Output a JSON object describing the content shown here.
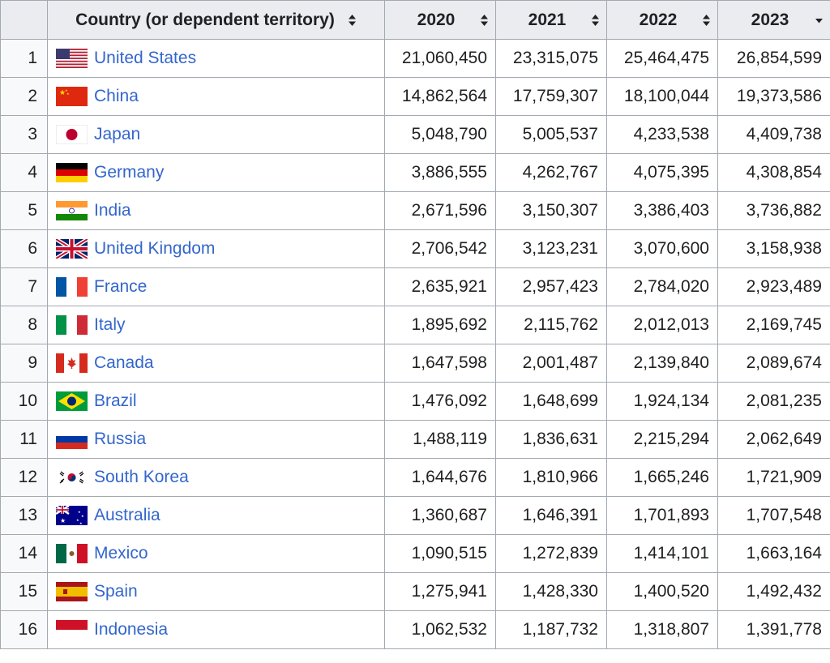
{
  "table": {
    "headers": {
      "rank": "",
      "country": "Country (or dependent territory)",
      "y2020": "2020",
      "y2021": "2021",
      "y2022": "2022",
      "y2023": "2023"
    },
    "sort_state": {
      "country": "unsorted",
      "y2020": "unsorted",
      "y2021": "unsorted",
      "y2022": "unsorted",
      "y2023": "descending"
    },
    "rows": [
      {
        "rank": "1",
        "flag": "flag-us-icon",
        "country": "United States",
        "v2020": "21,060,450",
        "v2021": "23,315,075",
        "v2022": "25,464,475",
        "v2023": "26,854,599"
      },
      {
        "rank": "2",
        "flag": "flag-cn-icon",
        "country": "China",
        "v2020": "14,862,564",
        "v2021": "17,759,307",
        "v2022": "18,100,044",
        "v2023": "19,373,586"
      },
      {
        "rank": "3",
        "flag": "flag-jp-icon",
        "country": "Japan",
        "v2020": "5,048,790",
        "v2021": "5,005,537",
        "v2022": "4,233,538",
        "v2023": "4,409,738"
      },
      {
        "rank": "4",
        "flag": "flag-de-icon",
        "country": "Germany",
        "v2020": "3,886,555",
        "v2021": "4,262,767",
        "v2022": "4,075,395",
        "v2023": "4,308,854"
      },
      {
        "rank": "5",
        "flag": "flag-in-icon",
        "country": "India",
        "v2020": "2,671,596",
        "v2021": "3,150,307",
        "v2022": "3,386,403",
        "v2023": "3,736,882"
      },
      {
        "rank": "6",
        "flag": "flag-gb-icon",
        "country": "United Kingdom",
        "v2020": "2,706,542",
        "v2021": "3,123,231",
        "v2022": "3,070,600",
        "v2023": "3,158,938"
      },
      {
        "rank": "7",
        "flag": "flag-fr-icon",
        "country": "France",
        "v2020": "2,635,921",
        "v2021": "2,957,423",
        "v2022": "2,784,020",
        "v2023": "2,923,489"
      },
      {
        "rank": "8",
        "flag": "flag-it-icon",
        "country": "Italy",
        "v2020": "1,895,692",
        "v2021": "2,115,762",
        "v2022": "2,012,013",
        "v2023": "2,169,745"
      },
      {
        "rank": "9",
        "flag": "flag-ca-icon",
        "country": "Canada",
        "v2020": "1,647,598",
        "v2021": "2,001,487",
        "v2022": "2,139,840",
        "v2023": "2,089,674"
      },
      {
        "rank": "10",
        "flag": "flag-br-icon",
        "country": "Brazil",
        "v2020": "1,476,092",
        "v2021": "1,648,699",
        "v2022": "1,924,134",
        "v2023": "2,081,235"
      },
      {
        "rank": "11",
        "flag": "flag-ru-icon",
        "country": "Russia",
        "v2020": "1,488,119",
        "v2021": "1,836,631",
        "v2022": "2,215,294",
        "v2023": "2,062,649"
      },
      {
        "rank": "12",
        "flag": "flag-kr-icon",
        "country": "South Korea",
        "v2020": "1,644,676",
        "v2021": "1,810,966",
        "v2022": "1,665,246",
        "v2023": "1,721,909"
      },
      {
        "rank": "13",
        "flag": "flag-au-icon",
        "country": "Australia",
        "v2020": "1,360,687",
        "v2021": "1,646,391",
        "v2022": "1,701,893",
        "v2023": "1,707,548"
      },
      {
        "rank": "14",
        "flag": "flag-mx-icon",
        "country": "Mexico",
        "v2020": "1,090,515",
        "v2021": "1,272,839",
        "v2022": "1,414,101",
        "v2023": "1,663,164"
      },
      {
        "rank": "15",
        "flag": "flag-es-icon",
        "country": "Spain",
        "v2020": "1,275,941",
        "v2021": "1,428,330",
        "v2022": "1,400,520",
        "v2023": "1,492,432"
      },
      {
        "rank": "16",
        "flag": "flag-id-icon",
        "country": "Indonesia",
        "v2020": "1,062,532",
        "v2021": "1,187,732",
        "v2022": "1,318,807",
        "v2023": "1,391,778"
      }
    ]
  },
  "colors": {
    "link": "#3366cc",
    "header_bg": "#eaecf0",
    "rank_bg": "#f8f9fa",
    "border": "#a2a9b1",
    "text": "#202122"
  }
}
